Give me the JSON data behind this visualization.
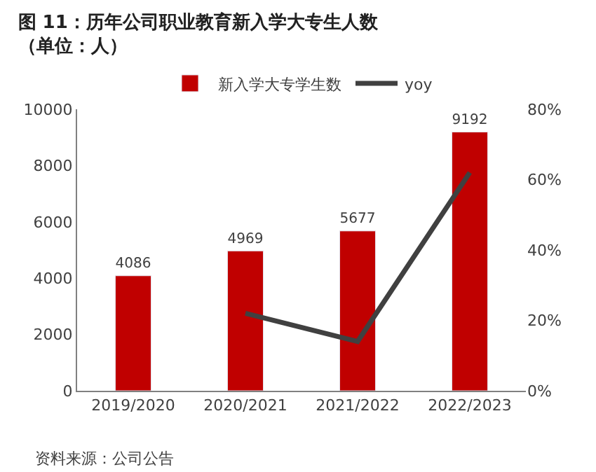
{
  "chart_data": {
    "type": "bar",
    "title": "图 11：历年公司职业教育新入学大专生人数（单位：人）",
    "categories": [
      "2019/2020",
      "2020/2021",
      "2021/2022",
      "2022/2023"
    ],
    "series": [
      {
        "name": "新入学大专学生数",
        "color": "#c00000",
        "values": [
          4086,
          4969,
          5677,
          9192
        ]
      },
      {
        "name": "yoy",
        "type": "line",
        "axis": "y2",
        "color": "#404040",
        "values": [
          null,
          22,
          14,
          62
        ]
      }
    ],
    "ylim": [
      0,
      10000
    ],
    "yticks": [
      0,
      2000,
      4000,
      6000,
      8000,
      10000
    ],
    "y2lim": [
      0,
      80
    ],
    "y2ticks": [
      {
        "value": 0,
        "label": "0%"
      },
      {
        "value": 20,
        "label": "20%"
      },
      {
        "value": 40,
        "label": "40%"
      },
      {
        "value": 60,
        "label": "60%"
      },
      {
        "value": 80,
        "label": "80%"
      }
    ],
    "value_labels": [
      "4086",
      "4969",
      "5677",
      "9192"
    ],
    "legend": "top",
    "annotations": [
      "资料来源：公司公告"
    ]
  }
}
